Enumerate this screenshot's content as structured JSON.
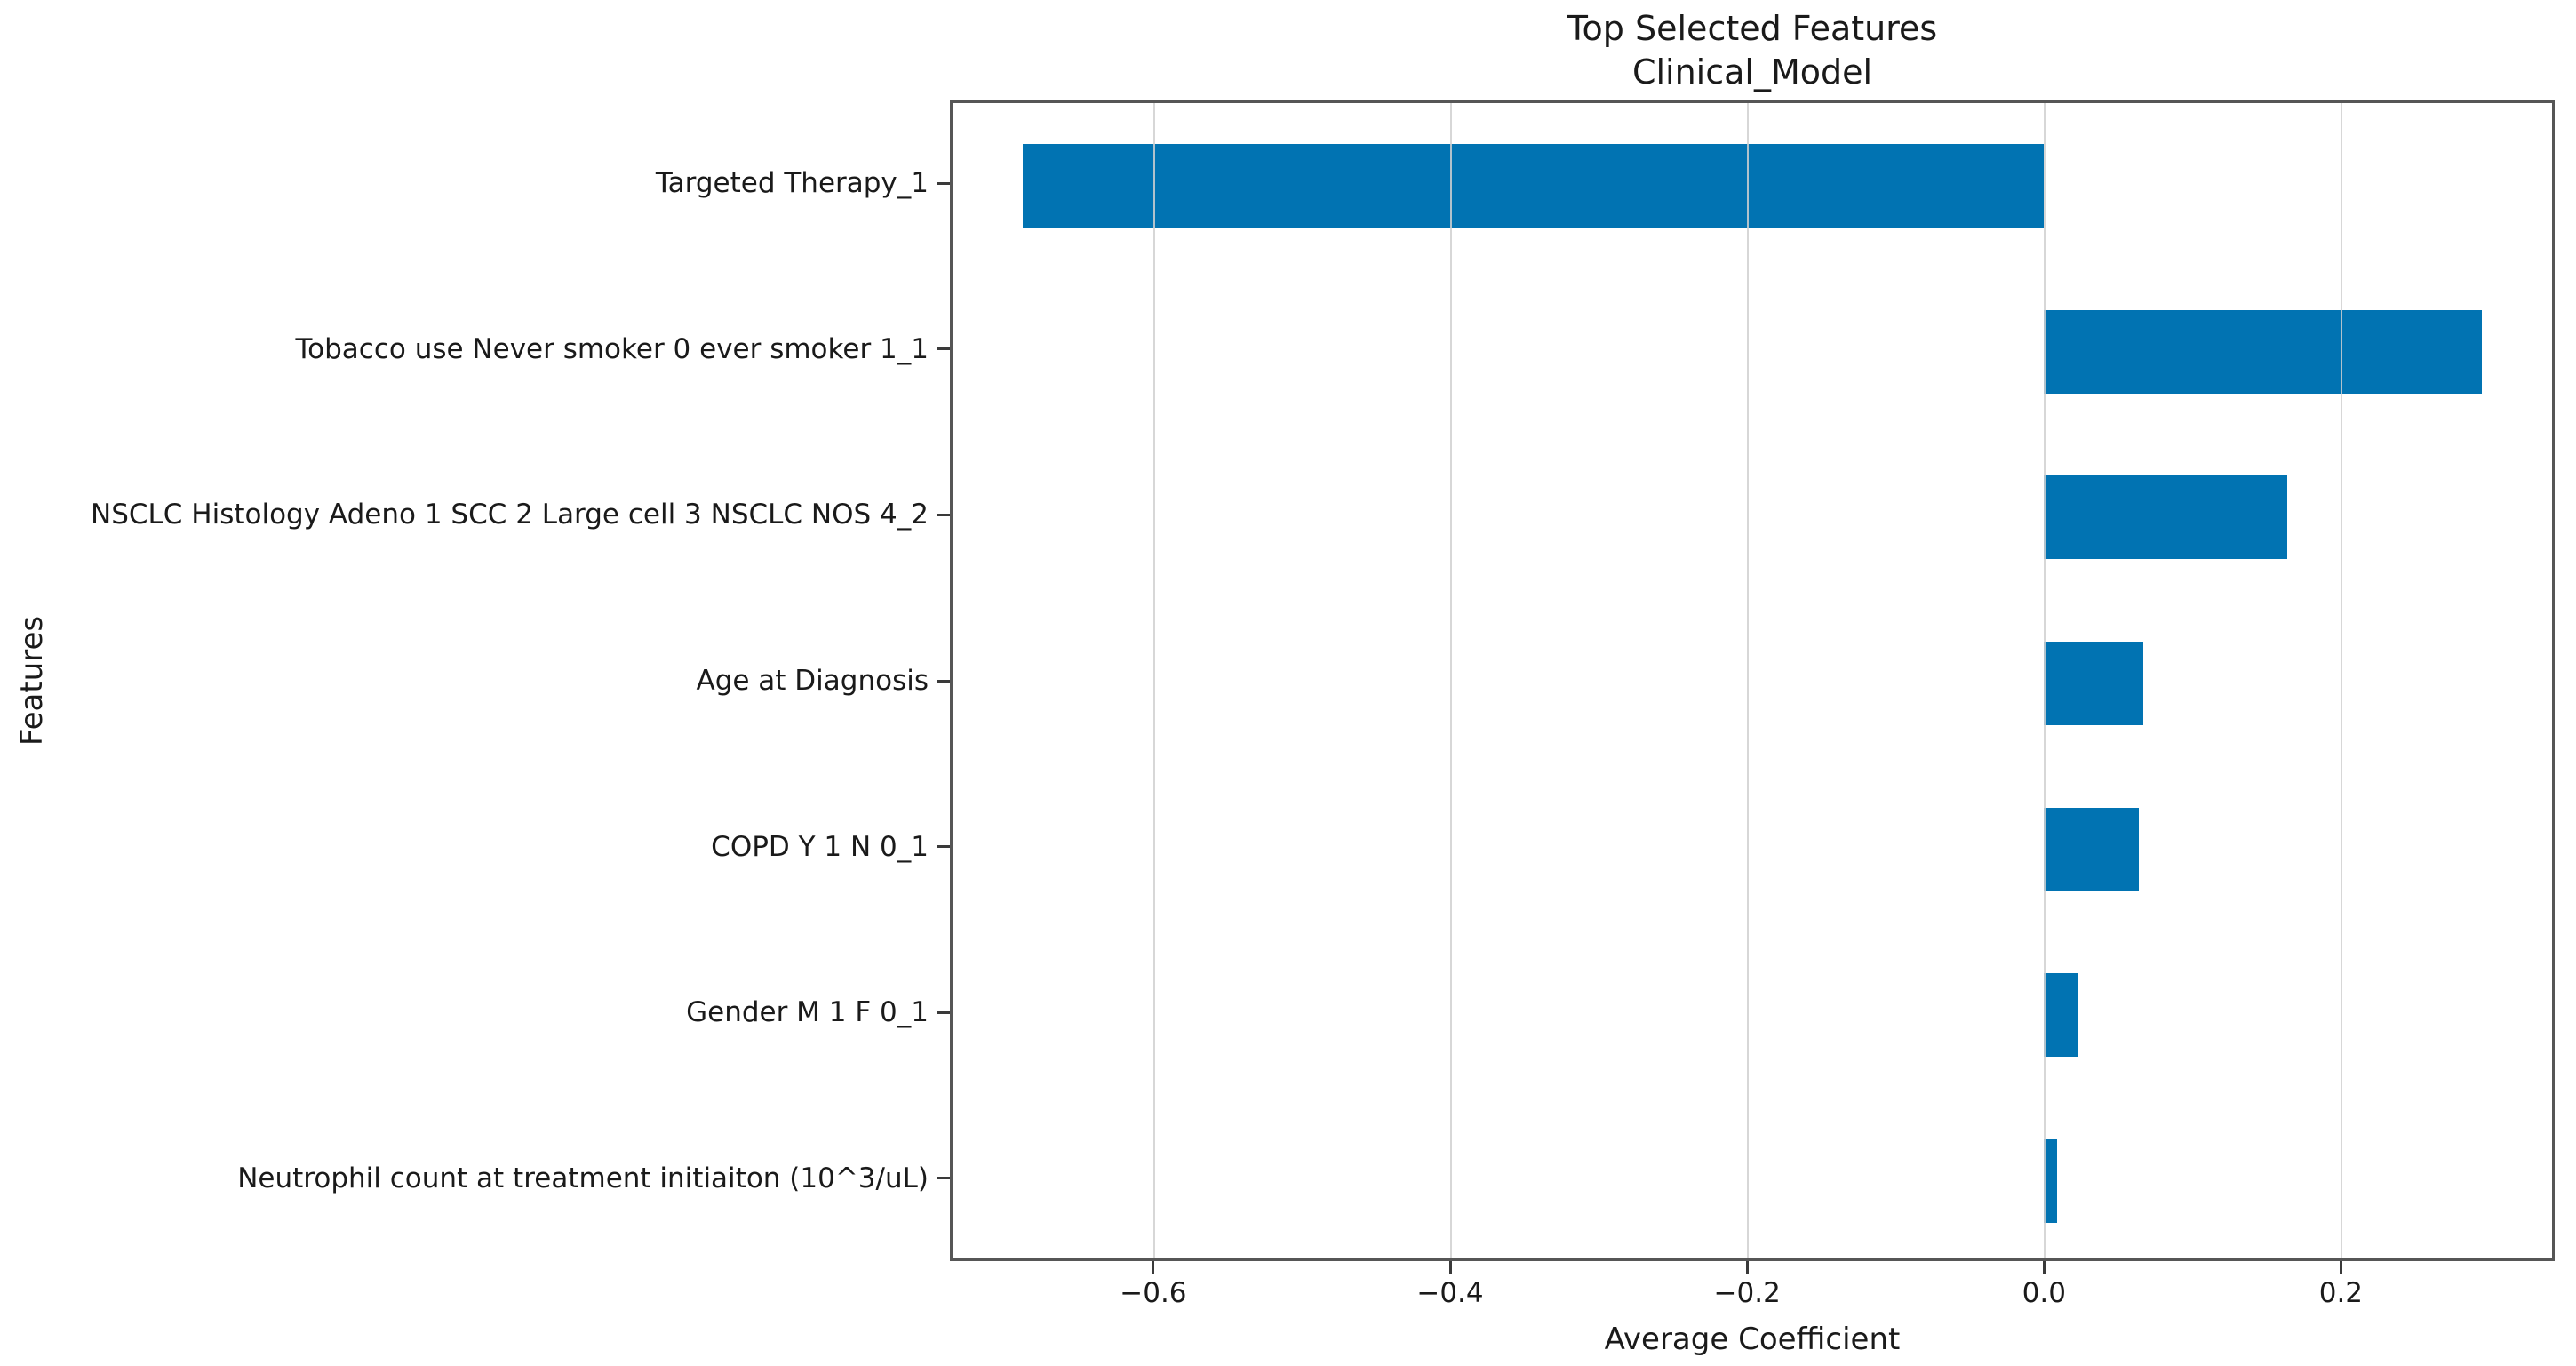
{
  "chart_data": {
    "type": "bar",
    "orientation": "horizontal",
    "title": "Top Selected Features",
    "subtitle": "Clinical_Model",
    "xlabel": "Average Coefficient",
    "ylabel": "Features",
    "categories": [
      "Targeted Therapy_1",
      "Tobacco use Never smoker 0 ever smoker 1_1",
      "NSCLC Histology Adeno 1 SCC 2 Large cell 3 NSCLC NOS 4_2",
      "Age at Diagnosis",
      "COPD Y 1 N 0_1",
      "Gender M 1 F 0_1",
      "Neutrophil count at treatment initiaiton (10^3/uL)"
    ],
    "values": [
      -0.688,
      0.295,
      0.164,
      0.067,
      0.064,
      0.023,
      0.009
    ],
    "xlim": [
      -0.737,
      0.344
    ],
    "xticks": [
      -0.6,
      -0.4,
      -0.2,
      0.0,
      0.2
    ],
    "xtick_labels": [
      "−0.6",
      "−0.4",
      "−0.2",
      "0.0",
      "0.2"
    ],
    "grid": true,
    "legend": null,
    "bar_color": "#0173b2",
    "grid_color": "#d0d0d0",
    "spine_color": "#565656",
    "text_color": "#1a1a1a",
    "background_color": "#ffffff"
  }
}
